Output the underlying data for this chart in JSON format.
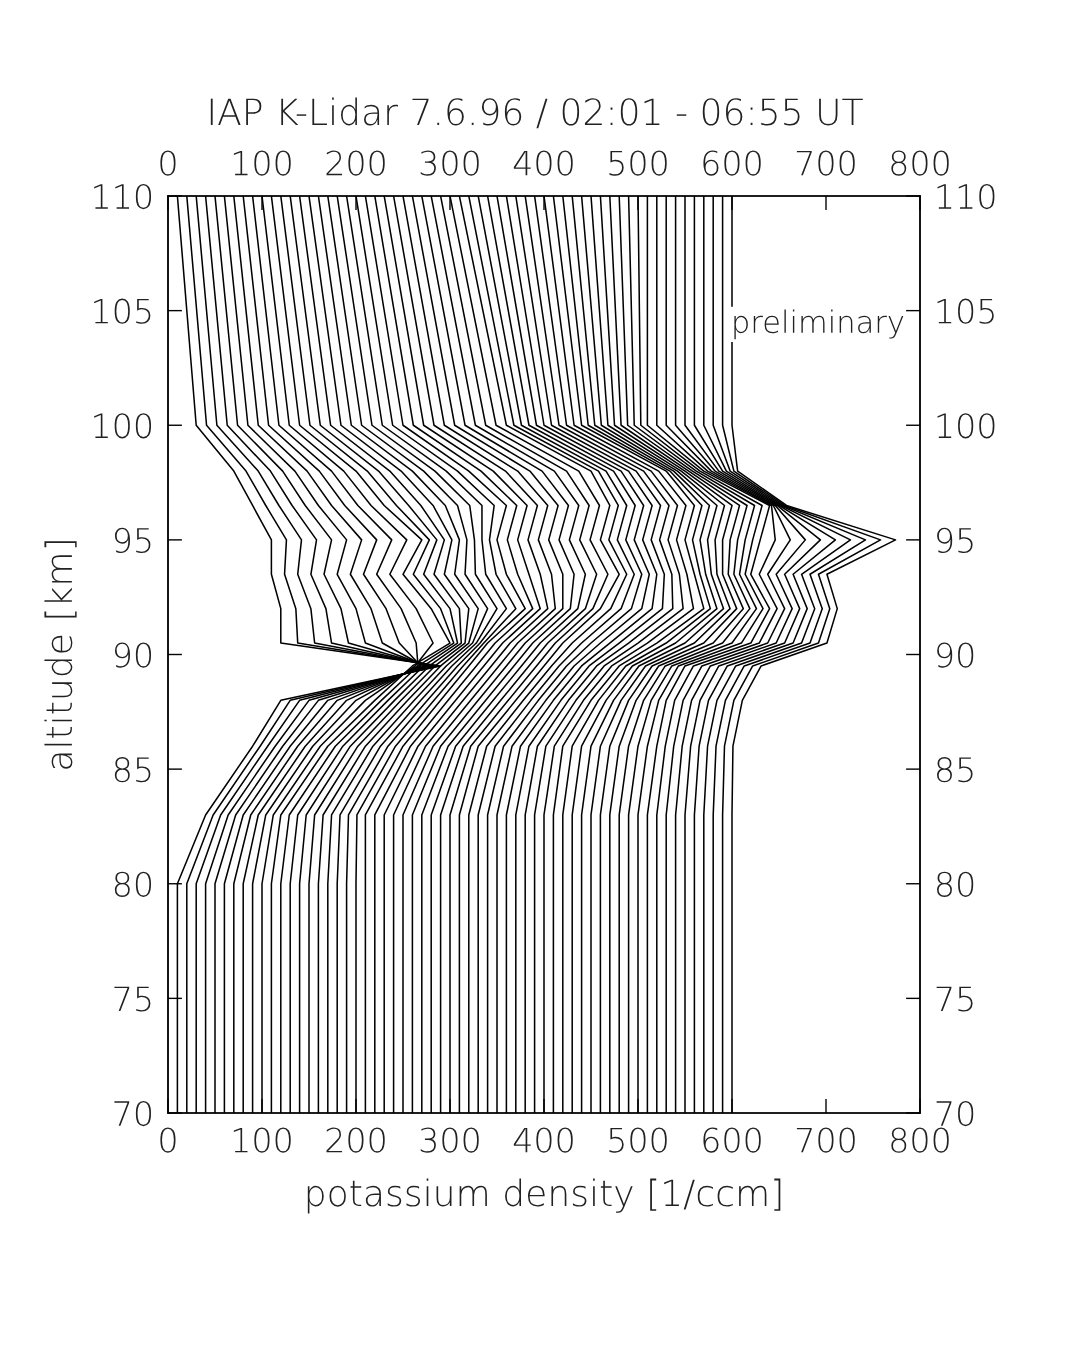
{
  "chart_data": {
    "type": "line",
    "title": "IAP K-Lidar 7.6.96 / 02:01 - 06:55 UT",
    "xlabel": "potassium density [1/ccm]",
    "ylabel": "altitude [km]",
    "xlim": [
      0,
      800
    ],
    "xticks": [
      0,
      100,
      200,
      300,
      400,
      500,
      600,
      700,
      800
    ],
    "x2lim": [
      0,
      800
    ],
    "x2ticks": [
      0,
      100,
      200,
      300,
      400,
      500,
      600,
      700,
      800
    ],
    "ylim": [
      70,
      110
    ],
    "yticks": [
      70,
      75,
      80,
      85,
      90,
      95,
      100,
      105,
      110
    ],
    "y2lim": [
      70,
      110
    ],
    "y2ticks": [
      70,
      75,
      80,
      85,
      90,
      95,
      100,
      105,
      110
    ],
    "annotations": [
      "preliminary"
    ],
    "series": [
      {
        "color": "#000000",
        "x": [
          10,
          10,
          40,
          90,
          120,
          290,
          120,
          120,
          110,
          110,
          90,
          70,
          30,
          10
        ],
        "values": [
          70,
          80,
          83,
          86,
          88,
          89.5,
          90.5,
          92,
          93.5,
          95,
          96.5,
          98,
          100,
          110
        ]
      },
      {
        "color": "#000000",
        "x": [
          20,
          20,
          48,
          98,
          130,
          287,
          138,
          136,
          124,
          126,
          104,
          83,
          41,
          20
        ],
        "values": [
          70,
          80,
          83,
          86,
          88,
          89.5,
          90.5,
          92,
          93.5,
          95,
          96.5,
          98,
          100,
          110
        ]
      },
      {
        "color": "#000000",
        "x": [
          30,
          30,
          56,
          106,
          140,
          284,
          156,
          152,
          138,
          142,
          118,
          96,
          52,
          30
        ],
        "values": [
          70,
          80,
          83,
          86,
          88,
          89.5,
          90.5,
          92,
          93.5,
          95,
          96.5,
          98,
          100,
          110
        ]
      },
      {
        "color": "#000000",
        "x": [
          40,
          40,
          64,
          114,
          150,
          281,
          174,
          168,
          152,
          158,
          132,
          109,
          63,
          40
        ],
        "values": [
          70,
          80,
          83,
          86,
          88,
          89.5,
          90.5,
          92,
          93.5,
          95,
          96.5,
          98,
          100,
          110
        ]
      },
      {
        "color": "#000000",
        "x": [
          50,
          50,
          72,
          122,
          160,
          278,
          192,
          184,
          166,
          174,
          146,
          122,
          74,
          50
        ],
        "values": [
          70,
          80,
          83,
          86,
          88,
          89.5,
          90.5,
          92,
          93.5,
          95,
          96.5,
          98,
          100,
          110
        ]
      },
      {
        "color": "#000000",
        "x": [
          60,
          60,
          80,
          130,
          170,
          275,
          210,
          200,
          180,
          190,
          160,
          135,
          85,
          60
        ],
        "values": [
          70,
          80,
          83,
          86,
          88,
          89.5,
          90.5,
          92,
          93.5,
          95,
          96.5,
          98,
          100,
          110
        ]
      },
      {
        "color": "#000000",
        "x": [
          70,
          70,
          88,
          138,
          180,
          272,
          228,
          216,
          194,
          206,
          174,
          148,
          96,
          70
        ],
        "values": [
          70,
          80,
          83,
          86,
          88,
          89.5,
          90.5,
          92,
          93.5,
          95,
          96.5,
          98,
          100,
          110
        ]
      },
      {
        "color": "#000000",
        "x": [
          80,
          80,
          96,
          146,
          190,
          269,
          246,
          232,
          208,
          222,
          188,
          161,
          107,
          80
        ],
        "values": [
          70,
          80,
          83,
          86,
          88,
          89.5,
          90.5,
          92,
          93.5,
          95,
          96.5,
          98,
          100,
          110
        ]
      },
      {
        "color": "#000000",
        "x": [
          90,
          90,
          104,
          154,
          200,
          266,
          264,
          248,
          222,
          238,
          202,
          174,
          118,
          90
        ],
        "values": [
          70,
          80,
          83,
          86,
          88,
          89.5,
          90.5,
          92,
          93.5,
          95,
          96.5,
          98,
          100,
          110
        ]
      },
      {
        "color": "#000000",
        "x": [
          100,
          100,
          112,
          162,
          210,
          263,
          282,
          264,
          236,
          254,
          216,
          187,
          129,
          100
        ],
        "values": [
          70,
          80,
          83,
          86,
          88,
          89.5,
          90.5,
          92,
          93.5,
          95,
          96.5,
          98,
          100,
          110
        ]
      },
      {
        "color": "#000000",
        "x": [
          110,
          110,
          120,
          170,
          220,
          260,
          300,
          280,
          250,
          270,
          230,
          200,
          140,
          110
        ],
        "values": [
          70,
          80,
          83,
          86,
          88,
          89.5,
          90.5,
          92,
          93.5,
          95,
          96.5,
          98,
          100,
          110
        ]
      },
      {
        "color": "#000000",
        "x": [
          120,
          120,
          129,
          178,
          227,
          266,
          304,
          290,
          261,
          278,
          243,
          212,
          151,
          120
        ],
        "values": [
          70,
          80,
          83,
          86,
          88,
          89.5,
          90.5,
          92,
          93.5,
          95,
          96.5,
          98,
          100,
          110
        ]
      },
      {
        "color": "#000000",
        "x": [
          130,
          130,
          138,
          186,
          234,
          272,
          308,
          300,
          272,
          286,
          256,
          224,
          162,
          130
        ],
        "values": [
          70,
          80,
          83,
          86,
          88,
          89.5,
          90.5,
          92,
          93.5,
          95,
          96.5,
          98,
          100,
          110
        ]
      },
      {
        "color": "#000000",
        "x": [
          140,
          140,
          147,
          194,
          241,
          278,
          312,
          310,
          283,
          294,
          269,
          236,
          173,
          140
        ],
        "values": [
          70,
          80,
          83,
          86,
          88,
          89.5,
          90.5,
          92,
          93.5,
          95,
          96.5,
          98,
          100,
          110
        ]
      },
      {
        "color": "#000000",
        "x": [
          150,
          150,
          156,
          202,
          248,
          284,
          316,
          320,
          294,
          302,
          282,
          248,
          184,
          150
        ],
        "values": [
          70,
          80,
          83,
          86,
          88,
          89.5,
          90.5,
          92,
          93.5,
          95,
          96.5,
          98,
          100,
          110
        ]
      },
      {
        "color": "#000000",
        "x": [
          160,
          160,
          165,
          210,
          255,
          290,
          320,
          330,
          305,
          310,
          295,
          260,
          195,
          160
        ],
        "values": [
          70,
          80,
          83,
          86,
          88,
          89.5,
          90.5,
          92,
          93.5,
          95,
          96.5,
          98,
          100,
          110
        ]
      },
      {
        "color": "#000000",
        "x": [
          170,
          170,
          174,
          218,
          262,
          296,
          324,
          340,
          316,
          318,
          308,
          272,
          206,
          170
        ],
        "values": [
          70,
          80,
          83,
          86,
          88,
          89.5,
          90.5,
          92,
          93.5,
          95,
          96.5,
          98,
          100,
          110
        ]
      },
      {
        "color": "#000000",
        "x": [
          180,
          180,
          183,
          226,
          269,
          302,
          328,
          350,
          327,
          326,
          321,
          284,
          217,
          180
        ],
        "values": [
          70,
          80,
          83,
          86,
          88,
          89.5,
          90.5,
          92,
          93.5,
          95,
          96.5,
          98,
          100,
          110
        ]
      },
      {
        "color": "#000000",
        "x": [
          190,
          190,
          192,
          234,
          276,
          308,
          332,
          360,
          338,
          334,
          334,
          296,
          228,
          190
        ],
        "values": [
          70,
          80,
          83,
          86,
          88,
          89.5,
          90.5,
          92,
          93.5,
          95,
          96.5,
          98,
          100,
          110
        ]
      },
      {
        "color": "#000000",
        "x": [
          200,
          200,
          201,
          242,
          283,
          314,
          336,
          370,
          349,
          342,
          347,
          308,
          239,
          200
        ],
        "values": [
          70,
          80,
          83,
          86,
          88,
          89.5,
          90.5,
          92,
          93.5,
          95,
          96.5,
          98,
          100,
          110
        ]
      },
      {
        "color": "#000000",
        "x": [
          210,
          210,
          210,
          250,
          290,
          320,
          340,
          380,
          360,
          350,
          360,
          320,
          250,
          210
        ],
        "values": [
          70,
          80,
          83,
          86,
          88,
          89.5,
          90.5,
          92,
          93.5,
          95,
          96.5,
          98,
          100,
          110
        ]
      },
      {
        "color": "#000000",
        "x": [
          220,
          220,
          220,
          258,
          298,
          328,
          348,
          388,
          372,
          361,
          371,
          333,
          261,
          220
        ],
        "values": [
          70,
          80,
          83,
          86,
          88,
          89.5,
          90.5,
          92,
          93.5,
          95,
          96.5,
          98,
          100,
          110
        ]
      },
      {
        "color": "#000000",
        "x": [
          230,
          230,
          230,
          266,
          306,
          336,
          356,
          396,
          384,
          372,
          382,
          346,
          272,
          230
        ],
        "values": [
          70,
          80,
          83,
          86,
          88,
          89.5,
          90.5,
          92,
          93.5,
          95,
          96.5,
          98,
          100,
          110
        ]
      },
      {
        "color": "#000000",
        "x": [
          240,
          240,
          240,
          274,
          314,
          344,
          364,
          404,
          396,
          383,
          393,
          359,
          283,
          240
        ],
        "values": [
          70,
          80,
          83,
          86,
          88,
          89.5,
          90.5,
          92,
          93.5,
          95,
          96.5,
          98,
          100,
          110
        ]
      },
      {
        "color": "#000000",
        "x": [
          250,
          250,
          250,
          282,
          322,
          352,
          372,
          412,
          408,
          394,
          404,
          372,
          294,
          250
        ],
        "values": [
          70,
          80,
          83,
          86,
          88,
          89.5,
          90.5,
          92,
          93.5,
          95,
          96.5,
          98,
          100,
          110
        ]
      },
      {
        "color": "#000000",
        "x": [
          260,
          260,
          260,
          290,
          330,
          360,
          380,
          420,
          420,
          405,
          415,
          385,
          305,
          260
        ],
        "values": [
          70,
          80,
          83,
          86,
          88,
          89.5,
          90.5,
          92,
          93.5,
          95,
          96.5,
          98,
          100,
          110
        ]
      },
      {
        "color": "#000000",
        "x": [
          270,
          270,
          270,
          298,
          338,
          368,
          388,
          428,
          432,
          416,
          426,
          398,
          316,
          270
        ],
        "values": [
          70,
          80,
          83,
          86,
          88,
          89.5,
          90.5,
          92,
          93.5,
          95,
          96.5,
          98,
          100,
          110
        ]
      },
      {
        "color": "#000000",
        "x": [
          280,
          280,
          280,
          306,
          346,
          376,
          396,
          436,
          444,
          427,
          437,
          411,
          327,
          280
        ],
        "values": [
          70,
          80,
          83,
          86,
          88,
          89.5,
          90.5,
          92,
          93.5,
          95,
          96.5,
          98,
          100,
          110
        ]
      },
      {
        "color": "#000000",
        "x": [
          290,
          290,
          290,
          314,
          354,
          384,
          404,
          444,
          456,
          438,
          448,
          424,
          338,
          290
        ],
        "values": [
          70,
          80,
          83,
          86,
          88,
          89.5,
          90.5,
          92,
          93.5,
          95,
          96.5,
          98,
          100,
          110
        ]
      },
      {
        "color": "#000000",
        "x": [
          300,
          300,
          300,
          322,
          362,
          392,
          412,
          452,
          468,
          449,
          459,
          437,
          349,
          300
        ],
        "values": [
          70,
          80,
          83,
          86,
          88,
          89.5,
          90.5,
          92,
          93.5,
          95,
          96.5,
          98,
          100,
          110
        ]
      },
      {
        "color": "#000000",
        "x": [
          310,
          310,
          310,
          330,
          370,
          400,
          420,
          460,
          480,
          460,
          470,
          450,
          360,
          310
        ],
        "values": [
          70,
          80,
          83,
          86,
          88,
          89.5,
          90.5,
          92,
          93.5,
          95,
          96.5,
          98,
          100,
          110
        ]
      },
      {
        "color": "#000000",
        "x": [
          320,
          320,
          320,
          339,
          378,
          408,
          430,
          471,
          488,
          469,
          479,
          458,
          368,
          320
        ],
        "values": [
          70,
          80,
          83,
          86,
          88,
          89.5,
          90.5,
          92,
          93.5,
          95,
          96.5,
          98,
          100,
          110
        ]
      },
      {
        "color": "#000000",
        "x": [
          330,
          330,
          330,
          348,
          386,
          416,
          440,
          482,
          496,
          478,
          488,
          466,
          376,
          330
        ],
        "values": [
          70,
          80,
          83,
          86,
          88,
          89.5,
          90.5,
          92,
          93.5,
          95,
          96.5,
          98,
          100,
          110
        ]
      },
      {
        "color": "#000000",
        "x": [
          340,
          340,
          340,
          357,
          394,
          424,
          450,
          493,
          504,
          487,
          497,
          474,
          384,
          340
        ],
        "values": [
          70,
          80,
          83,
          86,
          88,
          89.5,
          90.5,
          92,
          93.5,
          95,
          96.5,
          98,
          100,
          110
        ]
      },
      {
        "color": "#000000",
        "x": [
          350,
          350,
          350,
          366,
          402,
          432,
          460,
          504,
          512,
          496,
          506,
          482,
          392,
          350
        ],
        "values": [
          70,
          80,
          83,
          86,
          88,
          89.5,
          90.5,
          92,
          93.5,
          95,
          96.5,
          98,
          100,
          110
        ]
      },
      {
        "color": "#000000",
        "x": [
          360,
          360,
          360,
          375,
          410,
          440,
          470,
          515,
          520,
          505,
          515,
          490,
          400,
          360
        ],
        "values": [
          70,
          80,
          83,
          86,
          88,
          89.5,
          90.5,
          92,
          93.5,
          95,
          96.5,
          98,
          100,
          110
        ]
      },
      {
        "color": "#000000",
        "x": [
          370,
          370,
          370,
          384,
          418,
          448,
          480,
          526,
          528,
          514,
          524,
          498,
          408,
          370
        ],
        "values": [
          70,
          80,
          83,
          86,
          88,
          89.5,
          90.5,
          92,
          93.5,
          95,
          96.5,
          98,
          100,
          110
        ]
      },
      {
        "color": "#000000",
        "x": [
          380,
          380,
          380,
          393,
          426,
          456,
          490,
          537,
          536,
          523,
          533,
          506,
          416,
          380
        ],
        "values": [
          70,
          80,
          83,
          86,
          88,
          89.5,
          90.5,
          92,
          93.5,
          95,
          96.5,
          98,
          100,
          110
        ]
      },
      {
        "color": "#000000",
        "x": [
          390,
          390,
          390,
          402,
          434,
          464,
          500,
          548,
          544,
          532,
          542,
          514,
          424,
          390
        ],
        "values": [
          70,
          80,
          83,
          86,
          88,
          89.5,
          90.5,
          92,
          93.5,
          95,
          96.5,
          98,
          100,
          110
        ]
      },
      {
        "color": "#000000",
        "x": [
          400,
          400,
          400,
          411,
          442,
          472,
          510,
          559,
          552,
          541,
          551,
          522,
          432,
          400
        ],
        "values": [
          70,
          80,
          83,
          86,
          88,
          89.5,
          90.5,
          92,
          93.5,
          95,
          96.5,
          98,
          100,
          110
        ]
      },
      {
        "color": "#000000",
        "x": [
          410,
          410,
          410,
          420,
          450,
          480,
          520,
          570,
          560,
          550,
          560,
          530,
          440,
          410
        ],
        "values": [
          70,
          80,
          83,
          86,
          88,
          89.5,
          90.5,
          92,
          93.5,
          95,
          96.5,
          98,
          100,
          110
        ]
      },
      {
        "color": "#000000",
        "x": [
          420,
          420,
          420,
          430,
          458,
          487,
          530,
          577,
          566,
          558,
          568,
          534,
          447,
          420
        ],
        "values": [
          70,
          80,
          83,
          86,
          88,
          89.5,
          90.5,
          92,
          93.5,
          95,
          96.5,
          98,
          100,
          110
        ]
      },
      {
        "color": "#000000",
        "x": [
          430,
          430,
          430,
          440,
          466,
          494,
          540,
          584,
          572,
          566,
          576,
          538,
          454,
          430
        ],
        "values": [
          70,
          80,
          83,
          86,
          88,
          89.5,
          90.5,
          92,
          93.5,
          95,
          96.5,
          98,
          100,
          110
        ]
      },
      {
        "color": "#000000",
        "x": [
          440,
          440,
          440,
          450,
          474,
          501,
          550,
          591,
          578,
          574,
          584,
          542,
          461,
          440
        ],
        "values": [
          70,
          80,
          83,
          86,
          88,
          89.5,
          90.5,
          92,
          93.5,
          95,
          96.5,
          98,
          100,
          110
        ]
      },
      {
        "color": "#000000",
        "x": [
          450,
          450,
          450,
          460,
          482,
          508,
          560,
          598,
          584,
          582,
          592,
          546,
          468,
          450
        ],
        "values": [
          70,
          80,
          83,
          86,
          88,
          89.5,
          90.5,
          92,
          93.5,
          95,
          96.5,
          98,
          100,
          110
        ]
      },
      {
        "color": "#000000",
        "x": [
          460,
          460,
          460,
          470,
          490,
          515,
          570,
          605,
          590,
          590,
          600,
          550,
          475,
          460
        ],
        "values": [
          70,
          80,
          83,
          86,
          88,
          89.5,
          90.5,
          92,
          93.5,
          95,
          96.5,
          98,
          100,
          110
        ]
      },
      {
        "color": "#000000",
        "x": [
          470,
          470,
          470,
          480,
          498,
          522,
          580,
          612,
          596,
          598,
          608,
          554,
          482,
          470
        ],
        "values": [
          70,
          80,
          83,
          86,
          88,
          89.5,
          90.5,
          92,
          93.5,
          95,
          96.5,
          98,
          100,
          110
        ]
      },
      {
        "color": "#000000",
        "x": [
          480,
          480,
          480,
          490,
          506,
          529,
          590,
          619,
          602,
          606,
          616,
          558,
          489,
          480
        ],
        "values": [
          70,
          80,
          83,
          86,
          88,
          89.5,
          90.5,
          92,
          93.5,
          95,
          96.5,
          98,
          100,
          110
        ]
      },
      {
        "color": "#000000",
        "x": [
          490,
          490,
          490,
          500,
          514,
          536,
          600,
          626,
          608,
          614,
          624,
          562,
          496,
          490
        ],
        "values": [
          70,
          80,
          83,
          86,
          88,
          89.5,
          90.5,
          92,
          93.5,
          95,
          96.5,
          98,
          100,
          110
        ]
      },
      {
        "color": "#000000",
        "x": [
          500,
          500,
          500,
          510,
          522,
          543,
          610,
          633,
          614,
          622,
          632,
          566,
          503,
          500
        ],
        "values": [
          70,
          80,
          83,
          86,
          88,
          89.5,
          90.5,
          92,
          93.5,
          95,
          96.5,
          98,
          100,
          110
        ]
      },
      {
        "color": "#000000",
        "x": [
          510,
          510,
          510,
          520,
          530,
          550,
          620,
          640,
          620,
          630,
          640,
          570,
          510,
          510
        ],
        "values": [
          70,
          80,
          83,
          86,
          88,
          89.5,
          90.5,
          92,
          93.5,
          95,
          96.5,
          98,
          100,
          110
        ]
      },
      {
        "color": "#000000",
        "x": [
          520,
          520,
          520,
          529,
          539,
          559,
          629,
          648,
          629,
          646,
          642,
          574,
          520,
          520
        ],
        "values": [
          70,
          80,
          83,
          86,
          88,
          89.5,
          90.5,
          92,
          93.5,
          95,
          96.5,
          98,
          100,
          110
        ]
      },
      {
        "color": "#000000",
        "x": [
          530,
          530,
          530,
          538,
          548,
          568,
          638,
          656,
          638,
          662,
          644,
          578,
          530,
          530
        ],
        "values": [
          70,
          80,
          83,
          86,
          88,
          89.5,
          90.5,
          92,
          93.5,
          95,
          96.5,
          98,
          100,
          110
        ]
      },
      {
        "color": "#000000",
        "x": [
          540,
          540,
          540,
          547,
          557,
          577,
          647,
          664,
          647,
          678,
          646,
          582,
          540,
          540
        ],
        "values": [
          70,
          80,
          83,
          86,
          88,
          89.5,
          90.5,
          92,
          93.5,
          95,
          96.5,
          98,
          100,
          110
        ]
      },
      {
        "color": "#000000",
        "x": [
          550,
          550,
          550,
          556,
          566,
          586,
          656,
          672,
          656,
          694,
          648,
          586,
          550,
          550
        ],
        "values": [
          70,
          80,
          83,
          86,
          88,
          89.5,
          90.5,
          92,
          93.5,
          95,
          96.5,
          98,
          100,
          110
        ]
      },
      {
        "color": "#000000",
        "x": [
          560,
          560,
          560,
          565,
          575,
          595,
          665,
          680,
          665,
          710,
          650,
          590,
          560,
          560
        ],
        "values": [
          70,
          80,
          83,
          86,
          88,
          89.5,
          90.5,
          92,
          93.5,
          95,
          96.5,
          98,
          100,
          110
        ]
      },
      {
        "color": "#000000",
        "x": [
          570,
          570,
          570,
          574,
          584,
          604,
          674,
          688,
          674,
          726,
          652,
          594,
          570,
          570
        ],
        "values": [
          70,
          80,
          83,
          86,
          88,
          89.5,
          90.5,
          92,
          93.5,
          95,
          96.5,
          98,
          100,
          110
        ]
      },
      {
        "color": "#000000",
        "x": [
          580,
          580,
          580,
          583,
          593,
          613,
          683,
          696,
          683,
          742,
          654,
          598,
          580,
          580
        ],
        "values": [
          70,
          80,
          83,
          86,
          88,
          89.5,
          90.5,
          92,
          93.5,
          95,
          96.5,
          98,
          100,
          110
        ]
      },
      {
        "color": "#000000",
        "x": [
          590,
          590,
          590,
          592,
          602,
          622,
          692,
          704,
          692,
          758,
          656,
          602,
          590,
          590
        ],
        "values": [
          70,
          80,
          83,
          86,
          88,
          89.5,
          90.5,
          92,
          93.5,
          95,
          96.5,
          98,
          100,
          110
        ]
      },
      {
        "color": "#000000",
        "x": [
          600,
          600,
          600,
          601,
          611,
          631,
          701,
          712,
          701,
          774,
          658,
          606,
          600,
          600
        ],
        "values": [
          70,
          80,
          83,
          86,
          88,
          89.5,
          90.5,
          92,
          93.5,
          95,
          96.5,
          98,
          100,
          110
        ]
      }
    ]
  }
}
